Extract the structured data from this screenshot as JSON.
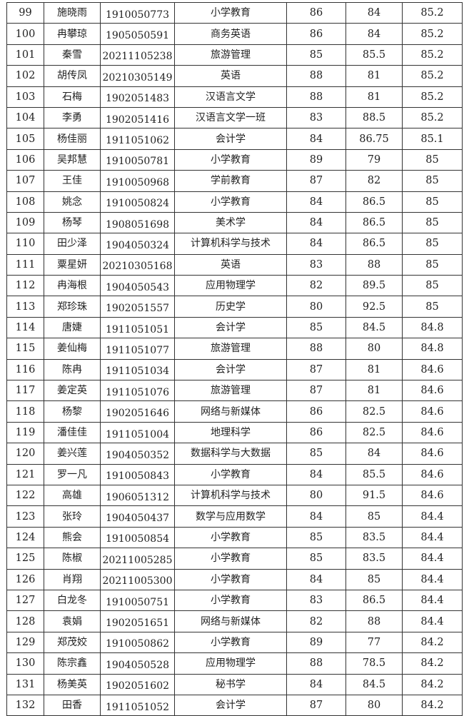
{
  "table": {
    "rows": [
      [
        "99",
        "施晓雨",
        "1910050773",
        "小学教育",
        "86",
        "84",
        "85.2"
      ],
      [
        "100",
        "冉攀琼",
        "1905050591",
        "商务英语",
        "86",
        "84",
        "85.2"
      ],
      [
        "101",
        "秦雪",
        "20211105238",
        "旅游管理",
        "85",
        "85.5",
        "85.2"
      ],
      [
        "102",
        "胡传凤",
        "20210305149",
        "英语",
        "88",
        "81",
        "85.2"
      ],
      [
        "103",
        "石梅",
        "1902051483",
        "汉语言文学",
        "88",
        "81",
        "85.2"
      ],
      [
        "104",
        "李勇",
        "1902051416",
        "汉语言文学一班",
        "83",
        "88.5",
        "85.2"
      ],
      [
        "105",
        "杨佳丽",
        "1911051062",
        "会计学",
        "84",
        "86.75",
        "85.1"
      ],
      [
        "106",
        "吴邦慧",
        "1910050781",
        "小学教育",
        "89",
        "79",
        "85"
      ],
      [
        "107",
        "王佳",
        "1910050968",
        "学前教育",
        "87",
        "82",
        "85"
      ],
      [
        "108",
        "姚念",
        "1910050824",
        "小学教育",
        "84",
        "86.5",
        "85"
      ],
      [
        "109",
        "杨琴",
        "1908051698",
        "美术学",
        "84",
        "86.5",
        "85"
      ],
      [
        "110",
        "田少泽",
        "1904050324",
        "计算机科学与技术",
        "84",
        "86.5",
        "85"
      ],
      [
        "111",
        "粟星妍",
        "20210305168",
        "英语",
        "83",
        "88",
        "85"
      ],
      [
        "112",
        "冉海根",
        "1904050543",
        "应用物理学",
        "82",
        "89.5",
        "85"
      ],
      [
        "113",
        "郑珍珠",
        "1902051557",
        "历史学",
        "80",
        "92.5",
        "85"
      ],
      [
        "114",
        "唐婕",
        "1911051051",
        "会计学",
        "85",
        "84.5",
        "84.8"
      ],
      [
        "115",
        "姜仙梅",
        "1911051077",
        "旅游管理",
        "88",
        "80",
        "84.8"
      ],
      [
        "116",
        "陈冉",
        "1911051034",
        "会计学",
        "87",
        "81",
        "84.6"
      ],
      [
        "117",
        "姜定英",
        "1911051076",
        "旅游管理",
        "87",
        "81",
        "84.6"
      ],
      [
        "118",
        "杨黎",
        "1902051646",
        "网络与新媒体",
        "86",
        "82.5",
        "84.6"
      ],
      [
        "119",
        "潘佳佳",
        "1911051004",
        "地理科学",
        "86",
        "82.5",
        "84.6"
      ],
      [
        "120",
        "姜兴莲",
        "1904050352",
        "数据科学与大数据",
        "85",
        "84",
        "84.6"
      ],
      [
        "121",
        "罗一凡",
        "1910050843",
        "小学教育",
        "84",
        "85.5",
        "84.6"
      ],
      [
        "122",
        "高雄",
        "1906051312",
        "计算机科学与技术",
        "80",
        "91.5",
        "84.6"
      ],
      [
        "123",
        "张玲",
        "1904050437",
        "数学与应用数学",
        "84",
        "85",
        "84.4"
      ],
      [
        "124",
        "熊会",
        "1910050854",
        "小学教育",
        "85",
        "83.5",
        "84.4"
      ],
      [
        "125",
        "陈椒",
        "20211005285",
        "小学教育",
        "85",
        "83.5",
        "84.4"
      ],
      [
        "126",
        "肖翔",
        "20211005300",
        "小学教育",
        "84",
        "85",
        "84.4"
      ],
      [
        "127",
        "白龙冬",
        "1910050751",
        "小学教育",
        "83",
        "86.5",
        "84.4"
      ],
      [
        "128",
        "袁娟",
        "1902051651",
        "网络与新媒体",
        "82",
        "88",
        "84.4"
      ],
      [
        "129",
        "郑茂姣",
        "1910050862",
        "小学教育",
        "89",
        "77",
        "84.2"
      ],
      [
        "130",
        "陈宗鑫",
        "1904050528",
        "应用物理学",
        "88",
        "78.5",
        "84.2"
      ],
      [
        "131",
        "杨美英",
        "1902051602",
        "秘书学",
        "84",
        "84.5",
        "84.2"
      ],
      [
        "132",
        "田香",
        "1911051052",
        "会计学",
        "87",
        "80",
        "84.2"
      ]
    ]
  }
}
